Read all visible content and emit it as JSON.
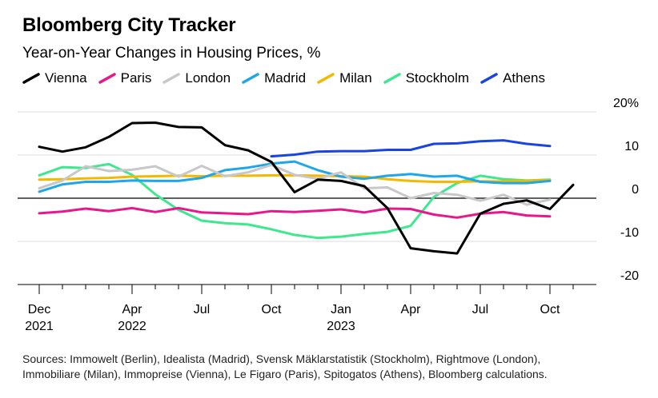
{
  "title": "Bloomberg City Tracker",
  "subtitle": "Year-on-Year Changes in Housing Prices, %",
  "source_line1": "Sources: Immowelt (Berlin), Idealista (Madrid), Svensk Mäklarstatistik (Stockholm), Rightmove (London),",
  "source_line2": "Immobiliare (Milan), Immopreise (Vienna), Le Figaro (Paris), Spitogatos (Athens), Bloomberg calculations.",
  "chart_data": {
    "type": "line",
    "title": "Bloomberg City Tracker",
    "subtitle": "Year-on-Year Changes in Housing Prices, %",
    "ylim": [
      -20,
      20
    ],
    "yticks": [
      {
        "value": 20,
        "label": "20%"
      },
      {
        "value": 10,
        "label": "10"
      },
      {
        "value": 0,
        "label": "0"
      },
      {
        "value": -10,
        "label": "-10"
      },
      {
        "value": -20,
        "label": "-20"
      }
    ],
    "x": [
      "2021-12",
      "2022-01",
      "2022-02",
      "2022-03",
      "2022-04",
      "2022-05",
      "2022-06",
      "2022-07",
      "2022-08",
      "2022-09",
      "2022-10",
      "2022-11",
      "2022-12",
      "2023-01",
      "2023-02",
      "2023-03",
      "2023-04",
      "2023-05",
      "2023-06",
      "2023-07",
      "2023-08",
      "2023-09",
      "2023-10",
      "2023-11"
    ],
    "xticks": [
      {
        "x": "2021-12",
        "label": "Dec",
        "sublabel": "2021"
      },
      {
        "x": "2022-04",
        "label": "Apr",
        "sublabel": "2022"
      },
      {
        "x": "2022-07",
        "label": "Jul",
        "sublabel": ""
      },
      {
        "x": "2022-10",
        "label": "Oct",
        "sublabel": ""
      },
      {
        "x": "2023-01",
        "label": "Jan",
        "sublabel": "2023"
      },
      {
        "x": "2023-04",
        "label": "Apr",
        "sublabel": ""
      },
      {
        "x": "2023-07",
        "label": "Jul",
        "sublabel": ""
      },
      {
        "x": "2023-10",
        "label": "Oct",
        "sublabel": ""
      }
    ],
    "grid": true,
    "legend_position": "top",
    "series": [
      {
        "name": "Vienna",
        "color": "#000000",
        "values": [
          11.9,
          10.8,
          11.8,
          14.2,
          17.4,
          17.5,
          16.5,
          16.4,
          12.3,
          11.1,
          8.4,
          1.4,
          4.3,
          4.0,
          2.8,
          -2.3,
          -11.6,
          -12.3,
          -12.8,
          -3.6,
          -1.3,
          -0.5,
          -2.5,
          3.1
        ]
      },
      {
        "name": "Paris",
        "color": "#e8178a",
        "values": [
          -3.5,
          -3.1,
          -2.4,
          -3.0,
          -2.3,
          -3.2,
          -2.3,
          -3.3,
          -3.5,
          -3.7,
          -3.0,
          -3.2,
          -2.9,
          -2.6,
          -3.3,
          -2.4,
          -2.5,
          -3.8,
          -4.5,
          -3.6,
          -3.2,
          -4.0,
          -4.2,
          null
        ]
      },
      {
        "name": "London",
        "color": "#c8c8c8",
        "values": [
          2.3,
          4.1,
          7.4,
          6.3,
          6.6,
          7.4,
          5.0,
          7.5,
          5.1,
          6.0,
          7.7,
          5.4,
          4.5,
          6.0,
          2.3,
          2.5,
          0.0,
          1.2,
          0.8,
          -0.6,
          0.8,
          -1.5,
          -0.3,
          null
        ]
      },
      {
        "name": "Madrid",
        "color": "#1ea7e8",
        "values": [
          1.5,
          3.2,
          3.8,
          3.8,
          4.1,
          4.0,
          4.0,
          4.7,
          6.5,
          7.1,
          8.0,
          8.5,
          6.5,
          5.0,
          4.5,
          5.2,
          5.6,
          5.0,
          5.2,
          3.8,
          3.5,
          3.5,
          4.0,
          null
        ]
      },
      {
        "name": "Milan",
        "color": "#f5b800",
        "values": [
          4.3,
          4.4,
          4.6,
          4.7,
          5.0,
          5.1,
          5.2,
          5.1,
          5.2,
          5.2,
          5.3,
          5.3,
          5.2,
          5.1,
          5.0,
          4.4,
          4.0,
          3.8,
          3.8,
          3.9,
          3.9,
          4.0,
          4.2,
          null
        ]
      },
      {
        "name": "Stockholm",
        "color": "#3ee88e",
        "values": [
          5.3,
          7.2,
          7.0,
          7.9,
          5.4,
          0.9,
          -2.7,
          -5.2,
          -5.8,
          -6.1,
          -7.2,
          -8.5,
          -9.2,
          -8.9,
          -8.3,
          -7.8,
          -6.4,
          0.3,
          3.5,
          5.2,
          4.4,
          4.1,
          4.3,
          null
        ]
      },
      {
        "name": "Athens",
        "color": "#1a44e0",
        "values": [
          null,
          null,
          null,
          null,
          null,
          null,
          null,
          null,
          null,
          null,
          9.7,
          10.1,
          10.8,
          10.9,
          10.9,
          11.2,
          11.2,
          12.6,
          12.7,
          13.2,
          13.4,
          12.6,
          12.1,
          null
        ]
      }
    ]
  }
}
